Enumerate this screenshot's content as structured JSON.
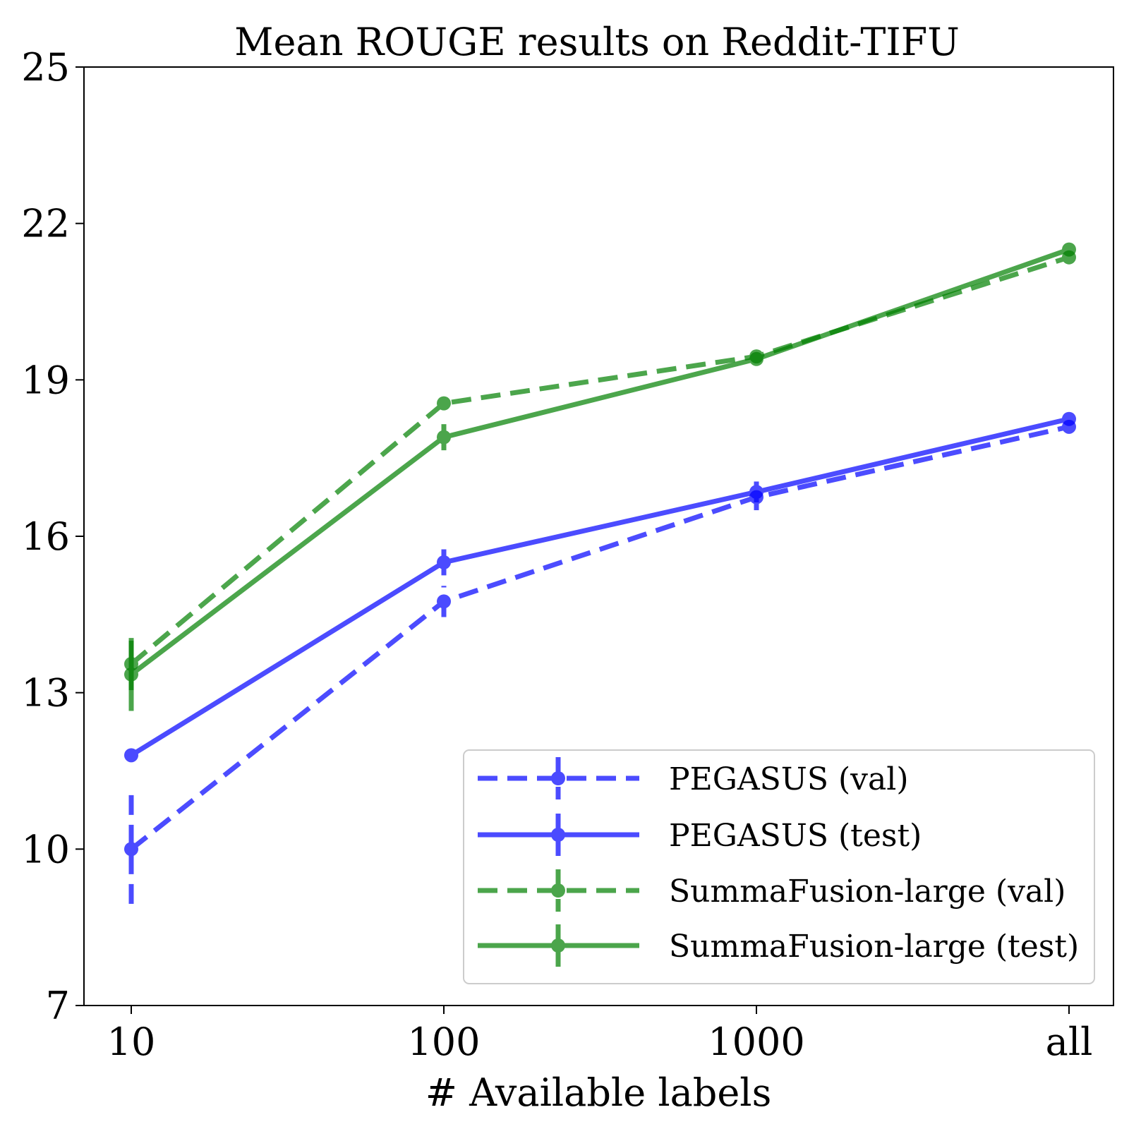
{
  "chart_data": {
    "type": "line",
    "title": "Mean ROUGE results on Reddit-TIFU",
    "xlabel": "# Available labels",
    "ylabel": "",
    "categories": [
      "10",
      "100",
      "1000",
      "all"
    ],
    "ylim": [
      7,
      25
    ],
    "yticks": [
      7,
      10,
      13,
      16,
      19,
      22,
      25
    ],
    "grid": false,
    "legend_position": "lower-right",
    "error_bars": true,
    "series": [
      {
        "name": "PEGASUS (val)",
        "color": "#0000ff",
        "linestyle": "dashed",
        "values": [
          10.0,
          14.75,
          16.75,
          18.1
        ],
        "errors": [
          1.05,
          0.3,
          0.25,
          0.05
        ]
      },
      {
        "name": "PEGASUS (test)",
        "color": "#0000ff",
        "linestyle": "solid",
        "values": [
          11.8,
          15.5,
          16.85,
          18.25
        ],
        "errors": [
          0.1,
          0.25,
          0.2,
          0.05
        ]
      },
      {
        "name": "SummaFusion-large (val)",
        "color": "#008000",
        "linestyle": "dashed",
        "values": [
          13.55,
          18.55,
          19.45,
          21.35
        ],
        "errors": [
          0.5,
          0.1,
          0.1,
          0.05
        ]
      },
      {
        "name": "SummaFusion-large (test)",
        "color": "#008000",
        "linestyle": "solid",
        "values": [
          13.35,
          17.9,
          19.4,
          21.5
        ],
        "errors": [
          0.7,
          0.25,
          0.1,
          0.05
        ]
      }
    ]
  }
}
